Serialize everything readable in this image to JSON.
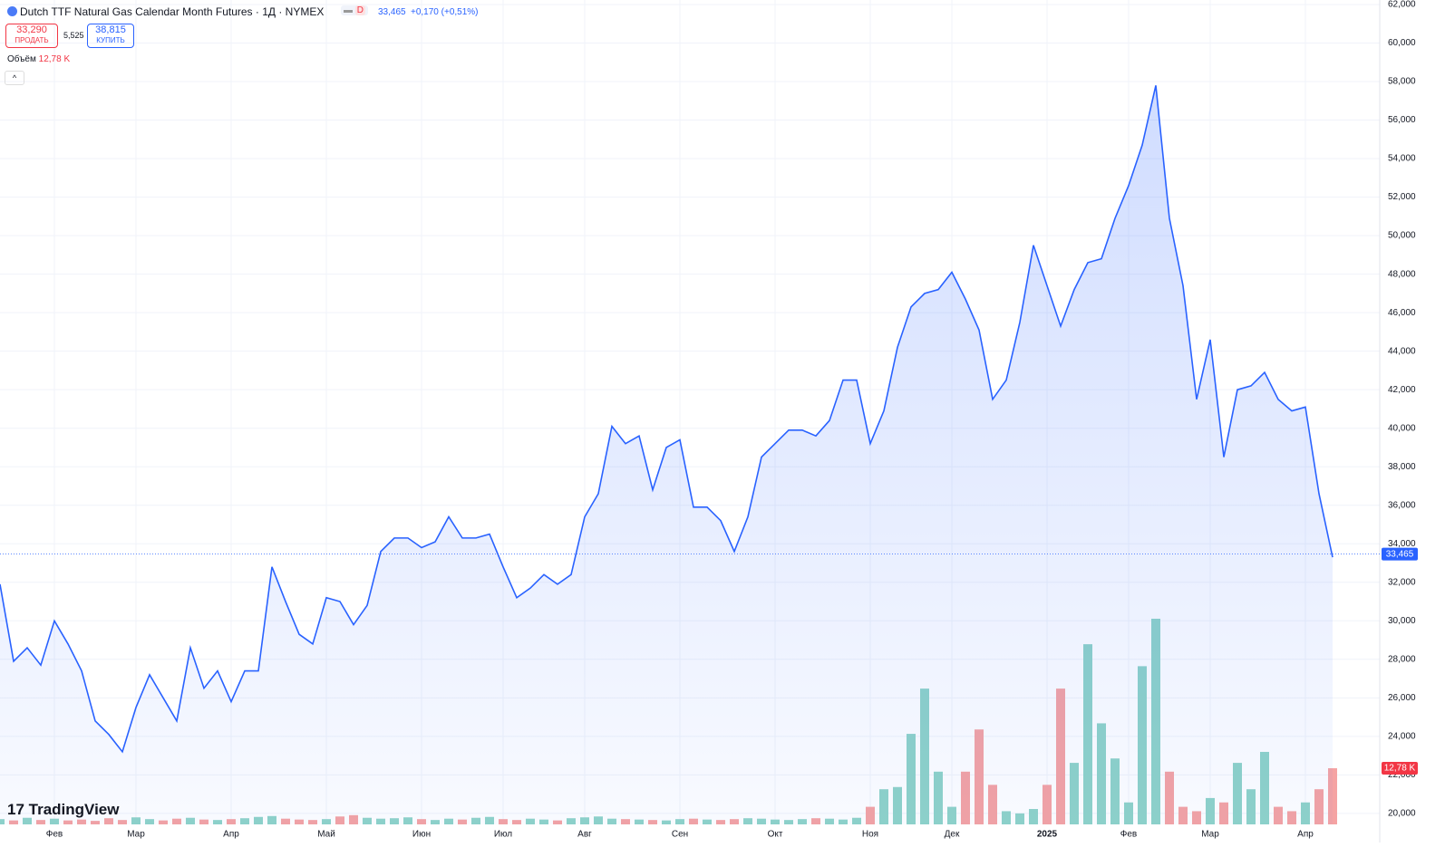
{
  "header": {
    "title": "Dutch TTF Natural Gas Calendar Month Futures · 1Д · NYMEX",
    "interval_badge": "D",
    "last": "33,465",
    "change": "+0,170 (+0,51%)",
    "sell_price": "33,290",
    "sell_label": "ПРОДАТЬ",
    "spread": "5,525",
    "buy_price": "38,815",
    "buy_label": "КУПИТЬ",
    "volume_label": "Объём",
    "volume_value": "12,78 K",
    "logo": "TradingView"
  },
  "chart_data": {
    "type": "line",
    "color": "#2962ff",
    "grid": true,
    "categories": [
      null,
      null,
      null,
      null,
      "Фев",
      null,
      null,
      null,
      null,
      null,
      "Мар",
      null,
      null,
      null,
      null,
      null,
      null,
      "Апр",
      null,
      null,
      null,
      null,
      null,
      null,
      "Май",
      null,
      null,
      null,
      null,
      null,
      null,
      "Июн",
      null,
      null,
      null,
      null,
      null,
      "Июл",
      null,
      null,
      null,
      null,
      null,
      "Авг",
      null,
      null,
      null,
      null,
      null,
      null,
      "Сен",
      null,
      null,
      null,
      null,
      null,
      null,
      "Окт",
      null,
      null,
      null,
      null,
      null,
      null,
      "Ноя",
      null,
      null,
      null,
      null,
      null,
      "Дек",
      null,
      null,
      null,
      null,
      null,
      null,
      "2025",
      null,
      null,
      null,
      null,
      null,
      "Фев",
      null,
      null,
      null,
      null,
      null,
      "Мар",
      null,
      null,
      null,
      null,
      null,
      null,
      "Апр",
      null,
      null
    ],
    "values": [
      31900,
      27900,
      28600,
      27700,
      30000,
      28800,
      27400,
      24800,
      24100,
      23200,
      25500,
      27200,
      26000,
      24800,
      28600,
      26500,
      27400,
      25800,
      27400,
      27400,
      32800,
      31000,
      29300,
      28800,
      31200,
      31000,
      29800,
      30800,
      33600,
      34300,
      34300,
      33800,
      34100,
      35400,
      34300,
      34300,
      34500,
      32800,
      31200,
      31700,
      32400,
      31900,
      32400,
      35400,
      36600,
      40100,
      39200,
      39600,
      36800,
      39000,
      39400,
      35900,
      35900,
      35200,
      33600,
      35400,
      38500,
      39200,
      39900,
      39900,
      39600,
      40400,
      42500,
      42500,
      39200,
      40900,
      44200,
      46300,
      47000,
      47200,
      48100,
      46700,
      45100,
      41500,
      42500,
      45500,
      49500,
      47400,
      45300,
      47200,
      48600,
      48800,
      50900,
      52600,
      54700,
      57800,
      50900,
      47400,
      41500,
      44600,
      38500,
      42000,
      42200,
      42900,
      41500,
      40900,
      41100,
      36600,
      33300
    ],
    "ylim": [
      19430,
      62235
    ],
    "yticks": [
      {
        "value": 20000,
        "label": "20,000"
      },
      {
        "value": 22000,
        "label": "22,000"
      },
      {
        "value": 24000,
        "label": "24,000"
      },
      {
        "value": 26000,
        "label": "26,000"
      },
      {
        "value": 28000,
        "label": "28,000"
      },
      {
        "value": 30000,
        "label": "30,000"
      },
      {
        "value": 32000,
        "label": "32,000"
      },
      {
        "value": 34000,
        "label": "34,000"
      },
      {
        "value": 36000,
        "label": "36,000"
      },
      {
        "value": 38000,
        "label": "38,000"
      },
      {
        "value": 40000,
        "label": "40,000"
      },
      {
        "value": 42000,
        "label": "42,000"
      },
      {
        "value": 44000,
        "label": "44,000"
      },
      {
        "value": 46000,
        "label": "46,000"
      },
      {
        "value": 48000,
        "label": "48,000"
      },
      {
        "value": 50000,
        "label": "50,000"
      },
      {
        "value": 52000,
        "label": "52,000"
      },
      {
        "value": 54000,
        "label": "54,000"
      },
      {
        "value": 56000,
        "label": "56,000"
      },
      {
        "value": 58000,
        "label": "58,000"
      },
      {
        "value": 60000,
        "label": "60,000"
      },
      {
        "value": 62000,
        "label": "62,000"
      }
    ],
    "last_price": {
      "value": 33465,
      "label": "33,465"
    },
    "volume": {
      "axis": "y2",
      "up_color": "#8fd3c8",
      "down_color": "#f5a3a3",
      "last_color": "#f23645",
      "values": [
        1200,
        900,
        1500,
        1000,
        1300,
        900,
        1100,
        800,
        1400,
        1000,
        1600,
        1200,
        900,
        1300,
        1500,
        1100,
        1000,
        1200,
        1400,
        1700,
        1900,
        1300,
        1100,
        1000,
        1200,
        1800,
        2100,
        1500,
        1300,
        1400,
        1600,
        1200,
        1000,
        1300,
        1100,
        1500,
        1700,
        1200,
        1000,
        1300,
        1100,
        900,
        1400,
        1600,
        1800,
        1300,
        1200,
        1100,
        1000,
        900,
        1200,
        1300,
        1100,
        1000,
        1200,
        1400,
        1300,
        1100,
        1000,
        1200,
        1400,
        1300,
        1100,
        1500,
        4000,
        8000,
        8500,
        20600,
        30900,
        12000,
        4000,
        12000,
        21600,
        9000,
        3000,
        2500,
        3500,
        9000,
        30900,
        14000,
        41000,
        23000,
        15000,
        5000,
        36000,
        46800,
        12000,
        4000,
        3000,
        6000,
        5000,
        14000,
        8000,
        16500,
        4000,
        3000,
        5000,
        8000,
        12780
      ],
      "value_labels": {
        "98": "12,78 K"
      },
      "y2lim": [
        0,
        187600
      ]
    }
  }
}
